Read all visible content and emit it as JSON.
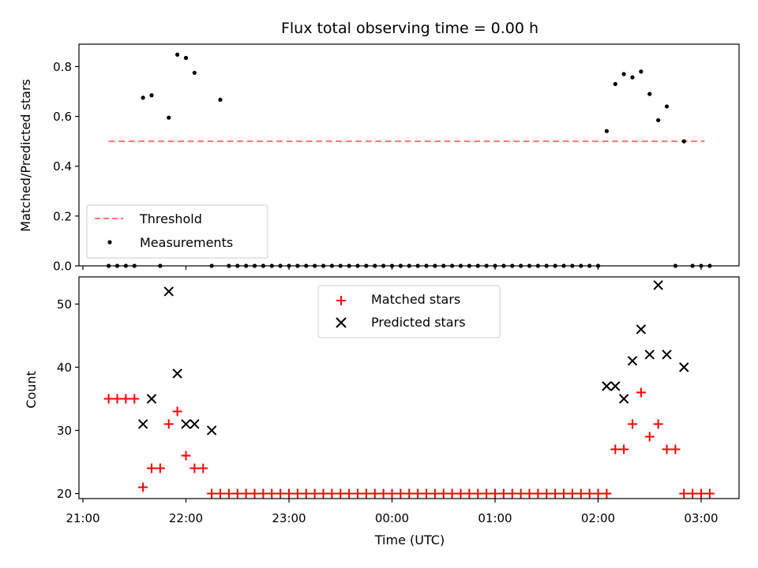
{
  "chart_data": {
    "type": "scatter",
    "title": "Flux total observing time = 0.00 h",
    "colors": {
      "measurements": "#000000",
      "threshold": "#ff7373",
      "matched": "#ff0000",
      "predicted": "#000000"
    },
    "xlabel": "Time (UTC)",
    "x_ticks": [
      "21:00",
      "22:00",
      "23:00",
      "00:00",
      "01:00",
      "02:00",
      "03:00"
    ],
    "panels": [
      {
        "ylabel": "Matched/Predicted stars",
        "ylim": [
          0,
          0.89
        ],
        "yticks": [
          "0.0",
          "0.2",
          "0.4",
          "0.6",
          "0.8"
        ],
        "legend_position": "lower-left",
        "threshold": {
          "name": "Threshold",
          "style": "dashed",
          "value": 0.5,
          "x_range": [
            "21:15",
            "03:02"
          ]
        },
        "series": [
          {
            "name": "Measurements",
            "marker": "dot",
            "x": [
              "21:15",
              "21:20",
              "21:25",
              "21:30",
              "21:35",
              "21:40",
              "21:45",
              "21:50",
              "21:55",
              "22:00",
              "22:05",
              "22:15",
              "22:20",
              "22:25",
              "22:30",
              "22:35",
              "22:40",
              "22:45",
              "22:50",
              "22:55",
              "23:00",
              "23:05",
              "23:10",
              "23:15",
              "23:20",
              "23:25",
              "23:30",
              "23:35",
              "23:40",
              "23:45",
              "23:50",
              "23:55",
              "00:00",
              "00:05",
              "00:10",
              "00:15",
              "00:20",
              "00:25",
              "00:30",
              "00:35",
              "00:40",
              "00:45",
              "00:50",
              "00:55",
              "01:00",
              "01:05",
              "01:10",
              "01:15",
              "01:20",
              "01:25",
              "01:30",
              "01:35",
              "01:40",
              "01:45",
              "01:50",
              "01:55",
              "02:00",
              "02:05",
              "02:10",
              "02:15",
              "02:20",
              "02:25",
              "02:30",
              "02:35",
              "02:40",
              "02:45",
              "02:50",
              "02:55",
              "03:00",
              "03:05"
            ],
            "y": [
              0,
              0,
              0,
              0,
              0.675,
              0.685,
              0,
              0.595,
              0.848,
              0.835,
              0.775,
              0,
              0.667,
              0,
              0,
              0,
              0,
              0,
              0,
              0,
              0,
              0,
              0,
              0,
              0,
              0,
              0,
              0,
              0,
              0,
              0,
              0,
              0,
              0,
              0,
              0,
              0,
              0,
              0,
              0,
              0,
              0,
              0,
              0,
              0,
              0,
              0,
              0,
              0,
              0,
              0,
              0,
              0,
              0,
              0,
              0,
              0,
              0.541,
              0.73,
              0.77,
              0.757,
              0.78,
              0.69,
              0.585,
              0.64,
              0,
              0.5,
              0,
              0,
              0
            ]
          }
        ]
      },
      {
        "ylabel": "Count",
        "ylim": [
          19.2,
          54.3
        ],
        "yticks": [
          "20",
          "30",
          "40",
          "50"
        ],
        "legend_position": "upper-center",
        "series": [
          {
            "name": "Matched stars",
            "marker": "plus",
            "x": [
              "21:15",
              "21:20",
              "21:25",
              "21:30",
              "21:35",
              "21:40",
              "21:45",
              "21:50",
              "21:55",
              "22:00",
              "22:05",
              "22:10",
              "22:15",
              "22:20",
              "22:25",
              "22:30",
              "22:35",
              "22:40",
              "22:45",
              "22:50",
              "22:55",
              "23:00",
              "23:05",
              "23:10",
              "23:15",
              "23:20",
              "23:25",
              "23:30",
              "23:35",
              "23:40",
              "23:45",
              "23:50",
              "23:55",
              "00:00",
              "00:05",
              "00:10",
              "00:15",
              "00:20",
              "00:25",
              "00:30",
              "00:35",
              "00:40",
              "00:45",
              "00:50",
              "00:55",
              "01:00",
              "01:05",
              "01:10",
              "01:15",
              "01:20",
              "01:25",
              "01:30",
              "01:35",
              "01:40",
              "01:45",
              "01:50",
              "01:55",
              "02:00",
              "02:05",
              "02:10",
              "02:15",
              "02:20",
              "02:25",
              "02:30",
              "02:35",
              "02:40",
              "02:45",
              "02:50",
              "02:55",
              "03:00",
              "03:05"
            ],
            "y": [
              35,
              35,
              35,
              35,
              21,
              24,
              24,
              31,
              33,
              26,
              24,
              24,
              20,
              20,
              20,
              20,
              20,
              20,
              20,
              20,
              20,
              20,
              20,
              20,
              20,
              20,
              20,
              20,
              20,
              20,
              20,
              20,
              20,
              20,
              20,
              20,
              20,
              20,
              20,
              20,
              20,
              20,
              20,
              20,
              20,
              20,
              20,
              20,
              20,
              20,
              20,
              20,
              20,
              20,
              20,
              20,
              20,
              20,
              20,
              27,
              27,
              31,
              36,
              29,
              31,
              27,
              27,
              20,
              20,
              20,
              20
            ]
          },
          {
            "name": "Predicted stars",
            "marker": "x",
            "x": [
              "21:35",
              "21:40",
              "21:50",
              "21:55",
              "22:00",
              "22:05",
              "22:15",
              "02:05",
              "02:10",
              "02:15",
              "02:20",
              "02:25",
              "02:30",
              "02:35",
              "02:40",
              "02:50"
            ],
            "y": [
              31,
              35,
              52,
              39,
              31,
              31,
              30,
              37,
              37,
              35,
              41,
              46,
              42,
              53,
              42,
              40
            ]
          }
        ]
      }
    ]
  }
}
